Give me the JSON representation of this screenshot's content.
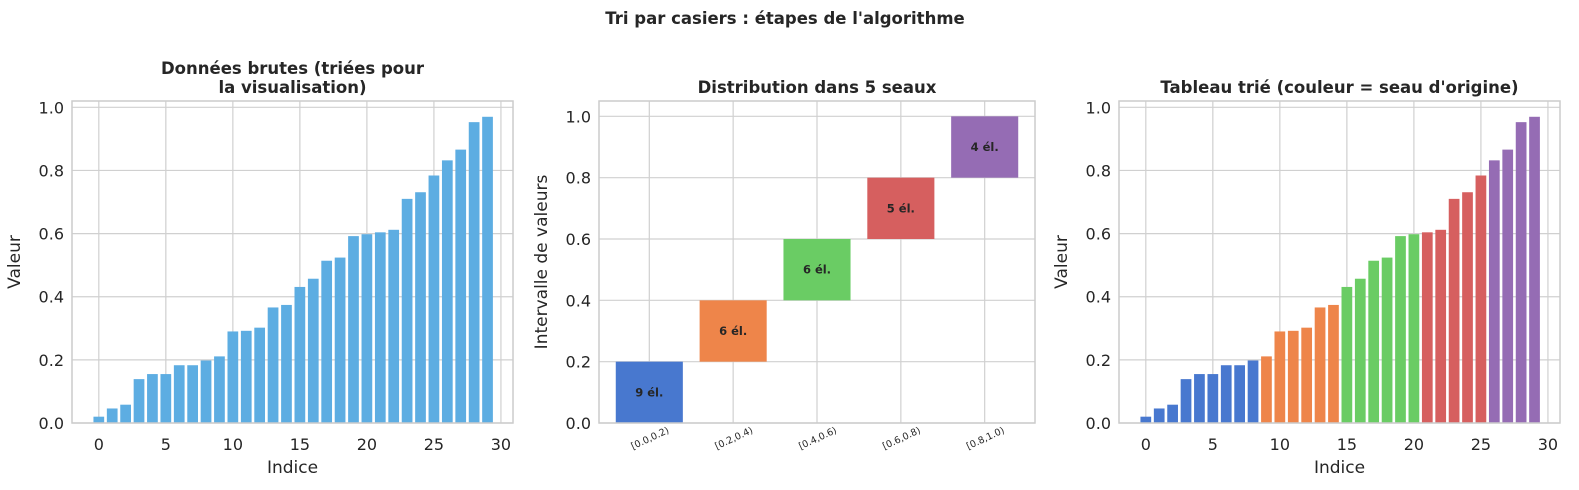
{
  "figure": {
    "suptitle": "Tri par casiers : étapes de l'algorithme"
  },
  "colors": {
    "raw_bar": "#5DADE2",
    "grid": "#d0d0d0",
    "axes_edge": "#cccccc",
    "text": "#262626",
    "buckets": [
      "#4878CF",
      "#EE854A",
      "#6ACC64",
      "#D65F5F",
      "#956CB4"
    ]
  },
  "chart_data": [
    {
      "type": "bar",
      "title": "Données brutes (triées pour\nla visualisation)",
      "xlabel": "Indice",
      "ylabel": "Valeur",
      "xlim": [
        -2.0,
        30.9
      ],
      "ylim": [
        0,
        1.02
      ],
      "xticks": [
        0,
        5,
        10,
        15,
        20,
        25,
        30
      ],
      "yticks": [
        0.0,
        0.2,
        0.4,
        0.6,
        0.8,
        1.0
      ],
      "grid": true,
      "x": [
        0,
        1,
        2,
        3,
        4,
        5,
        6,
        7,
        8,
        9,
        10,
        11,
        12,
        13,
        14,
        15,
        16,
        17,
        18,
        19,
        20,
        21,
        22,
        23,
        24,
        25,
        26,
        27,
        28,
        29
      ],
      "values": [
        0.02,
        0.046,
        0.058,
        0.139,
        0.155,
        0.155,
        0.183,
        0.183,
        0.198,
        0.211,
        0.29,
        0.292,
        0.302,
        0.366,
        0.374,
        0.431,
        0.457,
        0.514,
        0.524,
        0.592,
        0.598,
        0.604,
        0.612,
        0.71,
        0.731,
        0.784,
        0.832,
        0.866,
        0.953,
        0.97
      ]
    },
    {
      "type": "bar",
      "title": "Distribution dans 5 seaux",
      "xlabel": "",
      "ylabel": "Intervalle de valeurs",
      "ylim": [
        0,
        1.05
      ],
      "yticks": [
        0.0,
        0.2,
        0.4,
        0.6,
        0.8,
        1.0
      ],
      "grid": true,
      "categories": [
        "[0.0,0.2)",
        "[0.2,0.4)",
        "[0.4,0.6)",
        "[0.6,0.8)",
        "[0.8,1.0)"
      ],
      "ranges": [
        [
          0.0,
          0.2
        ],
        [
          0.2,
          0.4
        ],
        [
          0.4,
          0.6
        ],
        [
          0.6,
          0.8
        ],
        [
          0.8,
          1.0
        ]
      ],
      "counts": [
        9,
        6,
        6,
        5,
        4
      ],
      "labels": [
        "9 él.",
        "6 él.",
        "6 él.",
        "5 él.",
        "4 él."
      ]
    },
    {
      "type": "bar",
      "title": "Tableau trié (couleur = seau d'origine)",
      "xlabel": "Indice",
      "ylabel": "Valeur",
      "xlim": [
        -2.0,
        30.9
      ],
      "ylim": [
        0,
        1.02
      ],
      "xticks": [
        0,
        5,
        10,
        15,
        20,
        25,
        30
      ],
      "yticks": [
        0.0,
        0.2,
        0.4,
        0.6,
        0.8,
        1.0
      ],
      "grid": true,
      "x": [
        0,
        1,
        2,
        3,
        4,
        5,
        6,
        7,
        8,
        9,
        10,
        11,
        12,
        13,
        14,
        15,
        16,
        17,
        18,
        19,
        20,
        21,
        22,
        23,
        24,
        25,
        26,
        27,
        28,
        29
      ],
      "values": [
        0.02,
        0.046,
        0.058,
        0.139,
        0.155,
        0.155,
        0.183,
        0.183,
        0.198,
        0.211,
        0.29,
        0.292,
        0.302,
        0.366,
        0.374,
        0.431,
        0.457,
        0.514,
        0.524,
        0.592,
        0.598,
        0.604,
        0.612,
        0.71,
        0.731,
        0.784,
        0.832,
        0.866,
        0.953,
        0.97
      ],
      "bucket_index": [
        0,
        0,
        0,
        0,
        0,
        0,
        0,
        0,
        0,
        1,
        1,
        1,
        1,
        1,
        1,
        2,
        2,
        2,
        2,
        2,
        2,
        3,
        3,
        3,
        3,
        3,
        4,
        4,
        4,
        4
      ]
    }
  ]
}
